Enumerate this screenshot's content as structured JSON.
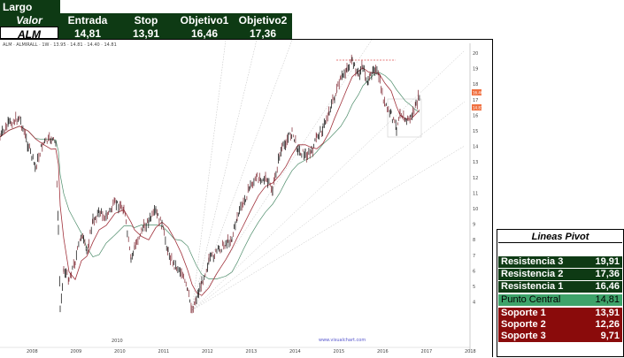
{
  "trade_table": {
    "direction": "Largo",
    "row_header": "Valor",
    "columns": [
      "Entrada",
      "Stop",
      "Objetivo1",
      "Objetivo2"
    ],
    "ticker": "ALM",
    "values": [
      "14,81",
      "13,91",
      "16,46",
      "17,36"
    ]
  },
  "chart": {
    "header_text": "ALM  ·  ALMIRALL  ·  1W  ·  13.95  ·  14.81  ·  14.40  ·  14.81",
    "watermark": "www.visualchart.com",
    "x_labels": [
      "2008",
      "2009",
      "2010",
      "2011",
      "2012",
      "2013",
      "2014",
      "2015",
      "2016",
      "2017",
      "2018"
    ],
    "year_marker": "2010",
    "y_labels": [
      "20",
      "19",
      "18",
      "17",
      "16",
      "15",
      "14",
      "13",
      "12",
      "11",
      "10",
      "9",
      "8",
      "7",
      "6",
      "5",
      "4"
    ],
    "price_tags": [
      "16.46",
      "14.81"
    ],
    "colors": {
      "price_line": "#000000",
      "ma_red": "#a0303a",
      "ma_green": "#4d8c6a",
      "fan": "#bbbbbb",
      "target": "#e05050"
    }
  },
  "pivot": {
    "title": "Lineas Pivot",
    "resistances": [
      {
        "label": "Resistencia 3",
        "value": "19,91"
      },
      {
        "label": "Resistencia 2",
        "value": "17,36"
      },
      {
        "label": "Resistencia 1",
        "value": "16,46"
      }
    ],
    "central": {
      "label": "Punto Central",
      "value": "14,81"
    },
    "supports": [
      {
        "label": "Soporte 1",
        "value": "13,91"
      },
      {
        "label": "Soporte 2",
        "value": "12,26"
      },
      {
        "label": "Soporte 3",
        "value": "9,71"
      }
    ]
  }
}
